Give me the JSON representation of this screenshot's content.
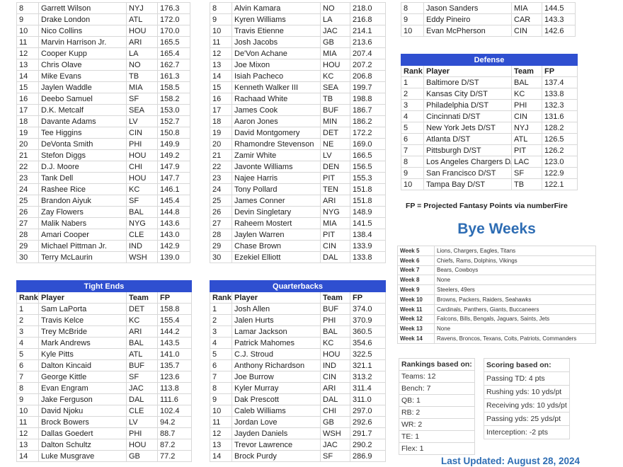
{
  "columns": {
    "rank": "Rank",
    "player": "Player",
    "team": "Team",
    "fp": "FP"
  },
  "wide_receivers": {
    "rows": [
      [
        "8",
        "Garrett Wilson",
        "NYJ",
        "176.3"
      ],
      [
        "9",
        "Drake London",
        "ATL",
        "172.0"
      ],
      [
        "10",
        "Nico Collins",
        "HOU",
        "170.0"
      ],
      [
        "11",
        "Marvin Harrison Jr.",
        "ARI",
        "165.5"
      ],
      [
        "12",
        "Cooper Kupp",
        "LA",
        "165.4"
      ],
      [
        "13",
        "Chris Olave",
        "NO",
        "162.7"
      ],
      [
        "14",
        "Mike Evans",
        "TB",
        "161.3"
      ],
      [
        "15",
        "Jaylen Waddle",
        "MIA",
        "158.5"
      ],
      [
        "16",
        "Deebo Samuel",
        "SF",
        "158.2"
      ],
      [
        "17",
        "D.K. Metcalf",
        "SEA",
        "153.0"
      ],
      [
        "18",
        "Davante Adams",
        "LV",
        "152.7"
      ],
      [
        "19",
        "Tee Higgins",
        "CIN",
        "150.8"
      ],
      [
        "20",
        "DeVonta Smith",
        "PHI",
        "149.9"
      ],
      [
        "21",
        "Stefon Diggs",
        "HOU",
        "149.2"
      ],
      [
        "22",
        "D.J. Moore",
        "CHI",
        "147.9"
      ],
      [
        "23",
        "Tank Dell",
        "HOU",
        "147.7"
      ],
      [
        "24",
        "Rashee Rice",
        "KC",
        "146.1"
      ],
      [
        "25",
        "Brandon Aiyuk",
        "SF",
        "145.4"
      ],
      [
        "26",
        "Zay Flowers",
        "BAL",
        "144.8"
      ],
      [
        "27",
        "Malik Nabers",
        "NYG",
        "143.6"
      ],
      [
        "28",
        "Amari Cooper",
        "CLE",
        "143.0"
      ],
      [
        "29",
        "Michael Pittman Jr.",
        "IND",
        "142.9"
      ],
      [
        "30",
        "Terry McLaurin",
        "WSH",
        "139.0"
      ]
    ]
  },
  "running_backs": {
    "rows": [
      [
        "8",
        "Alvin Kamara",
        "NO",
        "218.0"
      ],
      [
        "9",
        "Kyren Williams",
        "LA",
        "216.8"
      ],
      [
        "10",
        "Travis Etienne",
        "JAC",
        "214.1"
      ],
      [
        "11",
        "Josh Jacobs",
        "GB",
        "213.6"
      ],
      [
        "12",
        "De'Von Achane",
        "MIA",
        "207.4"
      ],
      [
        "13",
        "Joe Mixon",
        "HOU",
        "207.2"
      ],
      [
        "14",
        "Isiah Pacheco",
        "KC",
        "206.8"
      ],
      [
        "15",
        "Kenneth Walker III",
        "SEA",
        "199.7"
      ],
      [
        "16",
        "Rachaad White",
        "TB",
        "198.8"
      ],
      [
        "17",
        "James Cook",
        "BUF",
        "186.7"
      ],
      [
        "18",
        "Aaron Jones",
        "MIN",
        "186.2"
      ],
      [
        "19",
        "David Montgomery",
        "DET",
        "172.2"
      ],
      [
        "20",
        "Rhamondre Stevenson",
        "NE",
        "169.0"
      ],
      [
        "21",
        "Zamir White",
        "LV",
        "166.5"
      ],
      [
        "22",
        "Javonte Williams",
        "DEN",
        "156.5"
      ],
      [
        "23",
        "Najee Harris",
        "PIT",
        "155.3"
      ],
      [
        "24",
        "Tony Pollard",
        "TEN",
        "151.8"
      ],
      [
        "25",
        "James Conner",
        "ARI",
        "151.8"
      ],
      [
        "26",
        "Devin Singletary",
        "NYG",
        "148.9"
      ],
      [
        "27",
        "Raheem Mostert",
        "MIA",
        "141.5"
      ],
      [
        "28",
        "Jaylen Warren",
        "PIT",
        "138.4"
      ],
      [
        "29",
        "Chase Brown",
        "CIN",
        "133.9"
      ],
      [
        "30",
        "Ezekiel Elliott",
        "DAL",
        "133.8"
      ]
    ]
  },
  "kickers": {
    "rows": [
      [
        "8",
        "Jason Sanders",
        "MIA",
        "144.5"
      ],
      [
        "9",
        "Eddy Pineiro",
        "CAR",
        "143.3"
      ],
      [
        "10",
        "Evan McPherson",
        "CIN",
        "142.6"
      ]
    ]
  },
  "defense": {
    "title": "Defense",
    "rows": [
      [
        "1",
        "Baltimore D/ST",
        "BAL",
        "137.4"
      ],
      [
        "2",
        "Kansas City D/ST",
        "KC",
        "133.8"
      ],
      [
        "3",
        "Philadelphia D/ST",
        "PHI",
        "132.3"
      ],
      [
        "4",
        "Cincinnati D/ST",
        "CIN",
        "131.6"
      ],
      [
        "5",
        "New York Jets D/ST",
        "NYJ",
        "128.2"
      ],
      [
        "6",
        "Atlanta D/ST",
        "ATL",
        "126.5"
      ],
      [
        "7",
        "Pittsburgh D/ST",
        "PIT",
        "126.2"
      ],
      [
        "8",
        "Los Angeles Chargers D/ST",
        "LAC",
        "123.0"
      ],
      [
        "9",
        "San Francisco D/ST",
        "SF",
        "122.9"
      ],
      [
        "10",
        "Tampa Bay D/ST",
        "TB",
        "122.1"
      ]
    ]
  },
  "tight_ends": {
    "title": "Tight Ends",
    "rows": [
      [
        "1",
        "Sam LaPorta",
        "DET",
        "158.8"
      ],
      [
        "2",
        "Travis Kelce",
        "KC",
        "155.4"
      ],
      [
        "3",
        "Trey McBride",
        "ARI",
        "144.2"
      ],
      [
        "4",
        "Mark Andrews",
        "BAL",
        "143.5"
      ],
      [
        "5",
        "Kyle Pitts",
        "ATL",
        "141.0"
      ],
      [
        "6",
        "Dalton Kincaid",
        "BUF",
        "135.7"
      ],
      [
        "7",
        "George Kittle",
        "SF",
        "123.6"
      ],
      [
        "8",
        "Evan Engram",
        "JAC",
        "113.8"
      ],
      [
        "9",
        "Jake Ferguson",
        "DAL",
        "111.6"
      ],
      [
        "10",
        "David Njoku",
        "CLE",
        "102.4"
      ],
      [
        "11",
        "Brock Bowers",
        "LV",
        "94.2"
      ],
      [
        "12",
        "Dallas Goedert",
        "PHI",
        "88.7"
      ],
      [
        "13",
        "Dalton Schultz",
        "HOU",
        "87.2"
      ],
      [
        "14",
        "Luke Musgrave",
        "GB",
        "77.2"
      ]
    ]
  },
  "quarterbacks": {
    "title": "Quarterbacks",
    "rows": [
      [
        "1",
        "Josh Allen",
        "BUF",
        "374.0"
      ],
      [
        "2",
        "Jalen Hurts",
        "PHI",
        "370.9"
      ],
      [
        "3",
        "Lamar Jackson",
        "BAL",
        "360.5"
      ],
      [
        "4",
        "Patrick Mahomes",
        "KC",
        "354.6"
      ],
      [
        "5",
        "C.J. Stroud",
        "HOU",
        "322.5"
      ],
      [
        "6",
        "Anthony Richardson",
        "IND",
        "321.1"
      ],
      [
        "7",
        "Joe Burrow",
        "CIN",
        "313.2"
      ],
      [
        "8",
        "Kyler Murray",
        "ARI",
        "311.4"
      ],
      [
        "9",
        "Dak Prescott",
        "DAL",
        "311.0"
      ],
      [
        "10",
        "Caleb Williams",
        "CHI",
        "297.0"
      ],
      [
        "11",
        "Jordan Love",
        "GB",
        "292.6"
      ],
      [
        "12",
        "Jayden Daniels",
        "WSH",
        "291.7"
      ],
      [
        "13",
        "Trevor Lawrence",
        "JAC",
        "290.2"
      ],
      [
        "14",
        "Brock Purdy",
        "SF",
        "286.9"
      ]
    ]
  },
  "fp_note": "FP = Projected Fantasy Points via numberFire",
  "bye_weeks": {
    "title": "Bye Weeks",
    "rows": [
      [
        "Week 5",
        "Lions, Chargers, Eagles, Titans"
      ],
      [
        "Week 6",
        "Chiefs, Rams, Dolphins, Vikings"
      ],
      [
        "Week 7",
        "Bears, Cowboys"
      ],
      [
        "Week 8",
        "None"
      ],
      [
        "Week 9",
        "Steelers, 49ers"
      ],
      [
        "Week 10",
        "Browns, Packers, Raiders, Seahawks"
      ],
      [
        "Week 11",
        "Cardinals, Panthers, Giants, Buccaneers"
      ],
      [
        "Week 12",
        "Falcons, Bills, Bengals, Jaguars, Saints, Jets"
      ],
      [
        "Week 13",
        "None"
      ],
      [
        "Week 14",
        "Ravens, Broncos, Texans, Colts, Patriots, Commanders"
      ]
    ]
  },
  "rankings_basis": {
    "title": "Rankings based on:",
    "items": [
      "Teams: 12",
      "Bench: 7",
      "QB: 1",
      "RB: 2",
      "WR: 2",
      "TE: 1",
      "Flex: 1"
    ]
  },
  "scoring_basis": {
    "title": "Scoring based on:",
    "items": [
      "Passing TD: 4 pts",
      "Rushing yds: 10 yds/pt",
      "Receiving yds: 10 yds/pt",
      "Passing yds: 25 yds/pt",
      "Interception: -2 pts"
    ]
  },
  "last_updated": "Last Updated: August 28, 2024",
  "colors": {
    "header_bar": "#2f4fd0",
    "accent_text": "#2e6db4"
  }
}
